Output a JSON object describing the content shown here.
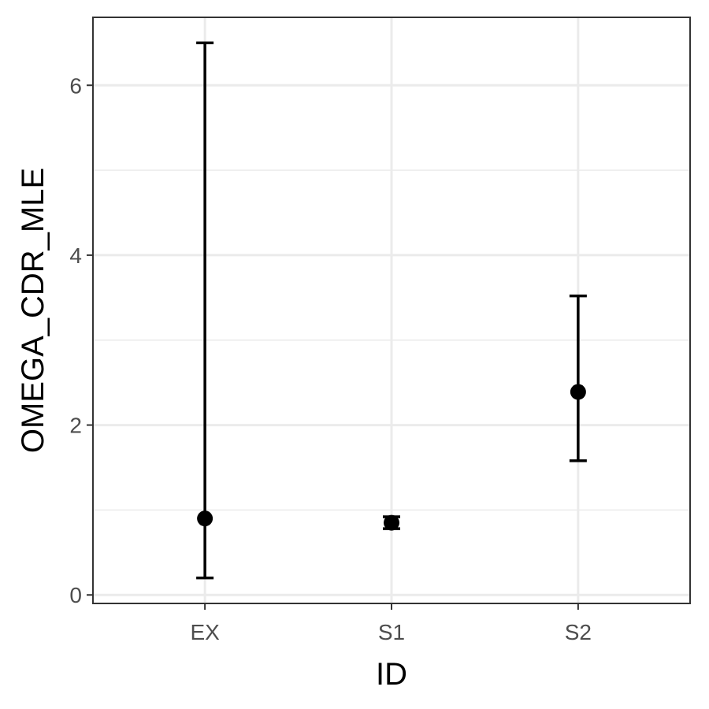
{
  "chart_data": {
    "type": "errorbar",
    "xlabel": "ID",
    "ylabel": "OMEGA_CDR_MLE",
    "categories": [
      "EX",
      "S1",
      "S2"
    ],
    "points": [
      {
        "id": "EX",
        "value": 0.9,
        "lower": 0.2,
        "upper": 6.5
      },
      {
        "id": "S1",
        "value": 0.85,
        "lower": 0.78,
        "upper": 0.92
      },
      {
        "id": "S2",
        "value": 2.39,
        "lower": 1.58,
        "upper": 3.52
      }
    ],
    "ylim": [
      -0.1,
      6.8
    ],
    "yticks": [
      0,
      2,
      4,
      6
    ],
    "yminor": [
      1,
      3,
      5
    ],
    "grid": true,
    "legend": "none",
    "colors": {
      "marks": "#000000",
      "grid": "#ebebeb",
      "border": "#333333",
      "tick_text": "#4d4d4d"
    }
  }
}
